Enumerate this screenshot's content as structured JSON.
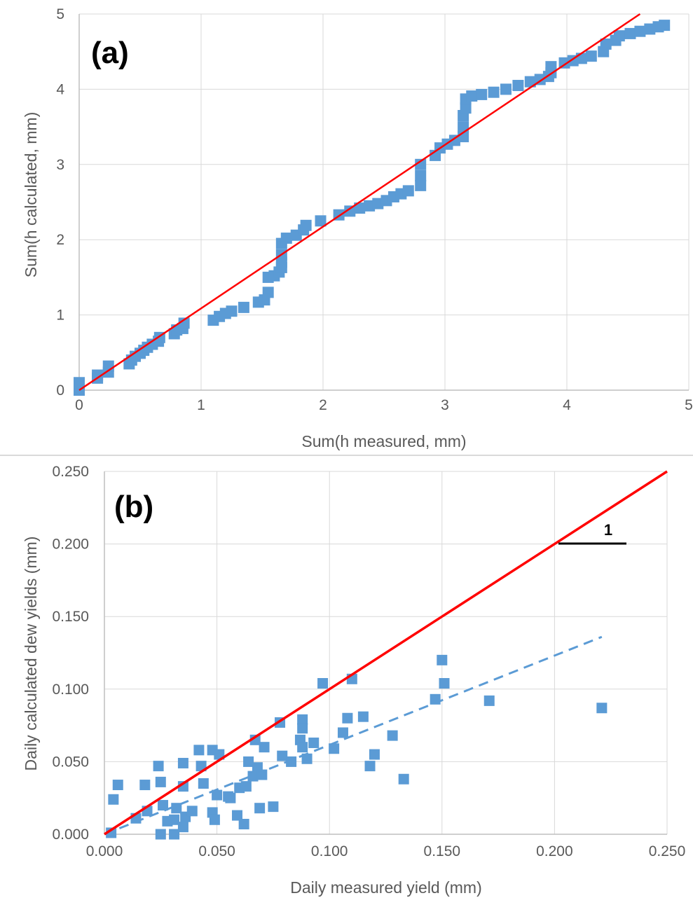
{
  "chart_data": [
    {
      "panel": "(a)",
      "type": "scatter",
      "title": "",
      "xlabel": "Sum(h  measured, mm)",
      "ylabel": "Sum(h calculated, mm)",
      "xlim": [
        0,
        5
      ],
      "ylim": [
        0,
        5
      ],
      "xticks": [
        "0",
        "1",
        "2",
        "3",
        "4",
        "5"
      ],
      "yticks": [
        "0",
        "1",
        "2",
        "3",
        "4",
        "5"
      ],
      "grid": true,
      "marker_color": "#5b9bd5",
      "series": [
        {
          "values": [
            [
              0.0,
              0.0
            ],
            [
              0.0,
              0.05
            ],
            [
              0.0,
              0.1
            ],
            [
              0.15,
              0.16
            ],
            [
              0.15,
              0.2
            ],
            [
              0.24,
              0.24
            ],
            [
              0.24,
              0.32
            ],
            [
              0.41,
              0.35
            ],
            [
              0.43,
              0.4
            ],
            [
              0.46,
              0.45
            ],
            [
              0.5,
              0.49
            ],
            [
              0.53,
              0.53
            ],
            [
              0.56,
              0.57
            ],
            [
              0.6,
              0.61
            ],
            [
              0.65,
              0.65
            ],
            [
              0.66,
              0.7
            ],
            [
              0.78,
              0.75
            ],
            [
              0.8,
              0.8
            ],
            [
              0.85,
              0.82
            ],
            [
              0.86,
              0.89
            ],
            [
              1.1,
              0.93
            ],
            [
              1.15,
              0.98
            ],
            [
              1.2,
              1.02
            ],
            [
              1.25,
              1.05
            ],
            [
              1.35,
              1.1
            ],
            [
              1.47,
              1.17
            ],
            [
              1.52,
              1.2
            ],
            [
              1.55,
              1.3
            ],
            [
              1.55,
              1.5
            ],
            [
              1.6,
              1.52
            ],
            [
              1.64,
              1.57
            ],
            [
              1.66,
              1.63
            ],
            [
              1.66,
              1.7
            ],
            [
              1.66,
              1.8
            ],
            [
              1.66,
              1.95
            ],
            [
              1.7,
              2.02
            ],
            [
              1.78,
              2.06
            ],
            [
              1.84,
              2.13
            ],
            [
              1.86,
              2.19
            ],
            [
              1.98,
              2.25
            ],
            [
              2.13,
              2.33
            ],
            [
              2.22,
              2.38
            ],
            [
              2.3,
              2.42
            ],
            [
              2.38,
              2.45
            ],
            [
              2.45,
              2.48
            ],
            [
              2.52,
              2.52
            ],
            [
              2.58,
              2.57
            ],
            [
              2.64,
              2.61
            ],
            [
              2.7,
              2.65
            ],
            [
              2.8,
              2.72
            ],
            [
              2.8,
              2.85
            ],
            [
              2.8,
              3.0
            ],
            [
              2.92,
              3.12
            ],
            [
              2.96,
              3.22
            ],
            [
              3.02,
              3.27
            ],
            [
              3.08,
              3.32
            ],
            [
              3.15,
              3.37
            ],
            [
              3.15,
              3.5
            ],
            [
              3.15,
              3.65
            ],
            [
              3.17,
              3.75
            ],
            [
              3.17,
              3.87
            ],
            [
              3.22,
              3.91
            ],
            [
              3.3,
              3.93
            ],
            [
              3.4,
              3.96
            ],
            [
              3.5,
              4.0
            ],
            [
              3.6,
              4.05
            ],
            [
              3.7,
              4.1
            ],
            [
              3.78,
              4.13
            ],
            [
              3.85,
              4.17
            ],
            [
              3.87,
              4.22
            ],
            [
              3.87,
              4.3
            ],
            [
              3.98,
              4.35
            ],
            [
              4.05,
              4.38
            ],
            [
              4.12,
              4.41
            ],
            [
              4.2,
              4.44
            ],
            [
              4.3,
              4.5
            ],
            [
              4.32,
              4.6
            ],
            [
              4.4,
              4.65
            ],
            [
              4.43,
              4.71
            ],
            [
              4.52,
              4.74
            ],
            [
              4.6,
              4.77
            ],
            [
              4.68,
              4.8
            ],
            [
              4.75,
              4.83
            ],
            [
              4.8,
              4.85
            ]
          ]
        }
      ],
      "reference_line": {
        "x": [
          0,
          4.6
        ],
        "y": [
          0,
          5.0
        ],
        "color": "#ff0000"
      }
    },
    {
      "panel": "(b)",
      "type": "scatter",
      "title": "",
      "xlabel": "Daily measured yield (mm)",
      "ylabel": "Daily calculated dew yields (mm)",
      "xlim": [
        0,
        0.25
      ],
      "ylim": [
        0,
        0.25
      ],
      "xticks": [
        "0.000",
        "0.050",
        "0.100",
        "0.150",
        "0.200",
        "0.250"
      ],
      "yticks": [
        "0.000",
        "0.050",
        "0.100",
        "0.150",
        "0.200",
        "0.250"
      ],
      "grid": true,
      "marker_color": "#5b9bd5",
      "series": [
        {
          "values": [
            [
              0.003,
              0.001
            ],
            [
              0.004,
              0.024
            ],
            [
              0.006,
              0.034
            ],
            [
              0.014,
              0.011
            ],
            [
              0.018,
              0.034
            ],
            [
              0.019,
              0.016
            ],
            [
              0.024,
              0.047
            ],
            [
              0.025,
              0.0
            ],
            [
              0.025,
              0.036
            ],
            [
              0.026,
              0.02
            ],
            [
              0.028,
              0.009
            ],
            [
              0.031,
              0.0
            ],
            [
              0.031,
              0.01
            ],
            [
              0.032,
              0.018
            ],
            [
              0.035,
              0.033
            ],
            [
              0.035,
              0.049
            ],
            [
              0.035,
              0.005
            ],
            [
              0.036,
              0.012
            ],
            [
              0.039,
              0.016
            ],
            [
              0.042,
              0.058
            ],
            [
              0.043,
              0.047
            ],
            [
              0.044,
              0.035
            ],
            [
              0.048,
              0.058
            ],
            [
              0.048,
              0.015
            ],
            [
              0.049,
              0.01
            ],
            [
              0.05,
              0.027
            ],
            [
              0.051,
              0.055
            ],
            [
              0.055,
              0.026
            ],
            [
              0.056,
              0.025
            ],
            [
              0.059,
              0.013
            ],
            [
              0.06,
              0.032
            ],
            [
              0.062,
              0.007
            ],
            [
              0.063,
              0.033
            ],
            [
              0.064,
              0.05
            ],
            [
              0.066,
              0.04
            ],
            [
              0.067,
              0.065
            ],
            [
              0.068,
              0.046
            ],
            [
              0.069,
              0.018
            ],
            [
              0.07,
              0.041
            ],
            [
              0.071,
              0.06
            ],
            [
              0.075,
              0.019
            ],
            [
              0.078,
              0.077
            ],
            [
              0.079,
              0.054
            ],
            [
              0.083,
              0.05
            ],
            [
              0.087,
              0.065
            ],
            [
              0.088,
              0.079
            ],
            [
              0.088,
              0.073
            ],
            [
              0.088,
              0.06
            ],
            [
              0.09,
              0.052
            ],
            [
              0.093,
              0.063
            ],
            [
              0.097,
              0.104
            ],
            [
              0.102,
              0.059
            ],
            [
              0.106,
              0.07
            ],
            [
              0.108,
              0.08
            ],
            [
              0.11,
              0.107
            ],
            [
              0.115,
              0.081
            ],
            [
              0.118,
              0.047
            ],
            [
              0.12,
              0.055
            ],
            [
              0.128,
              0.068
            ],
            [
              0.133,
              0.038
            ],
            [
              0.147,
              0.093
            ],
            [
              0.15,
              0.12
            ],
            [
              0.151,
              0.104
            ],
            [
              0.171,
              0.092
            ],
            [
              0.221,
              0.087
            ]
          ]
        }
      ],
      "reference_line": {
        "x": [
          0,
          0.25
        ],
        "y": [
          0,
          0.25
        ],
        "color": "#ff0000"
      },
      "trendline": {
        "x": [
          0,
          0.221
        ],
        "y": [
          0,
          0.136
        ],
        "color": "#5b9bd5",
        "style": "dashed"
      },
      "slope_annotation": "1"
    }
  ]
}
